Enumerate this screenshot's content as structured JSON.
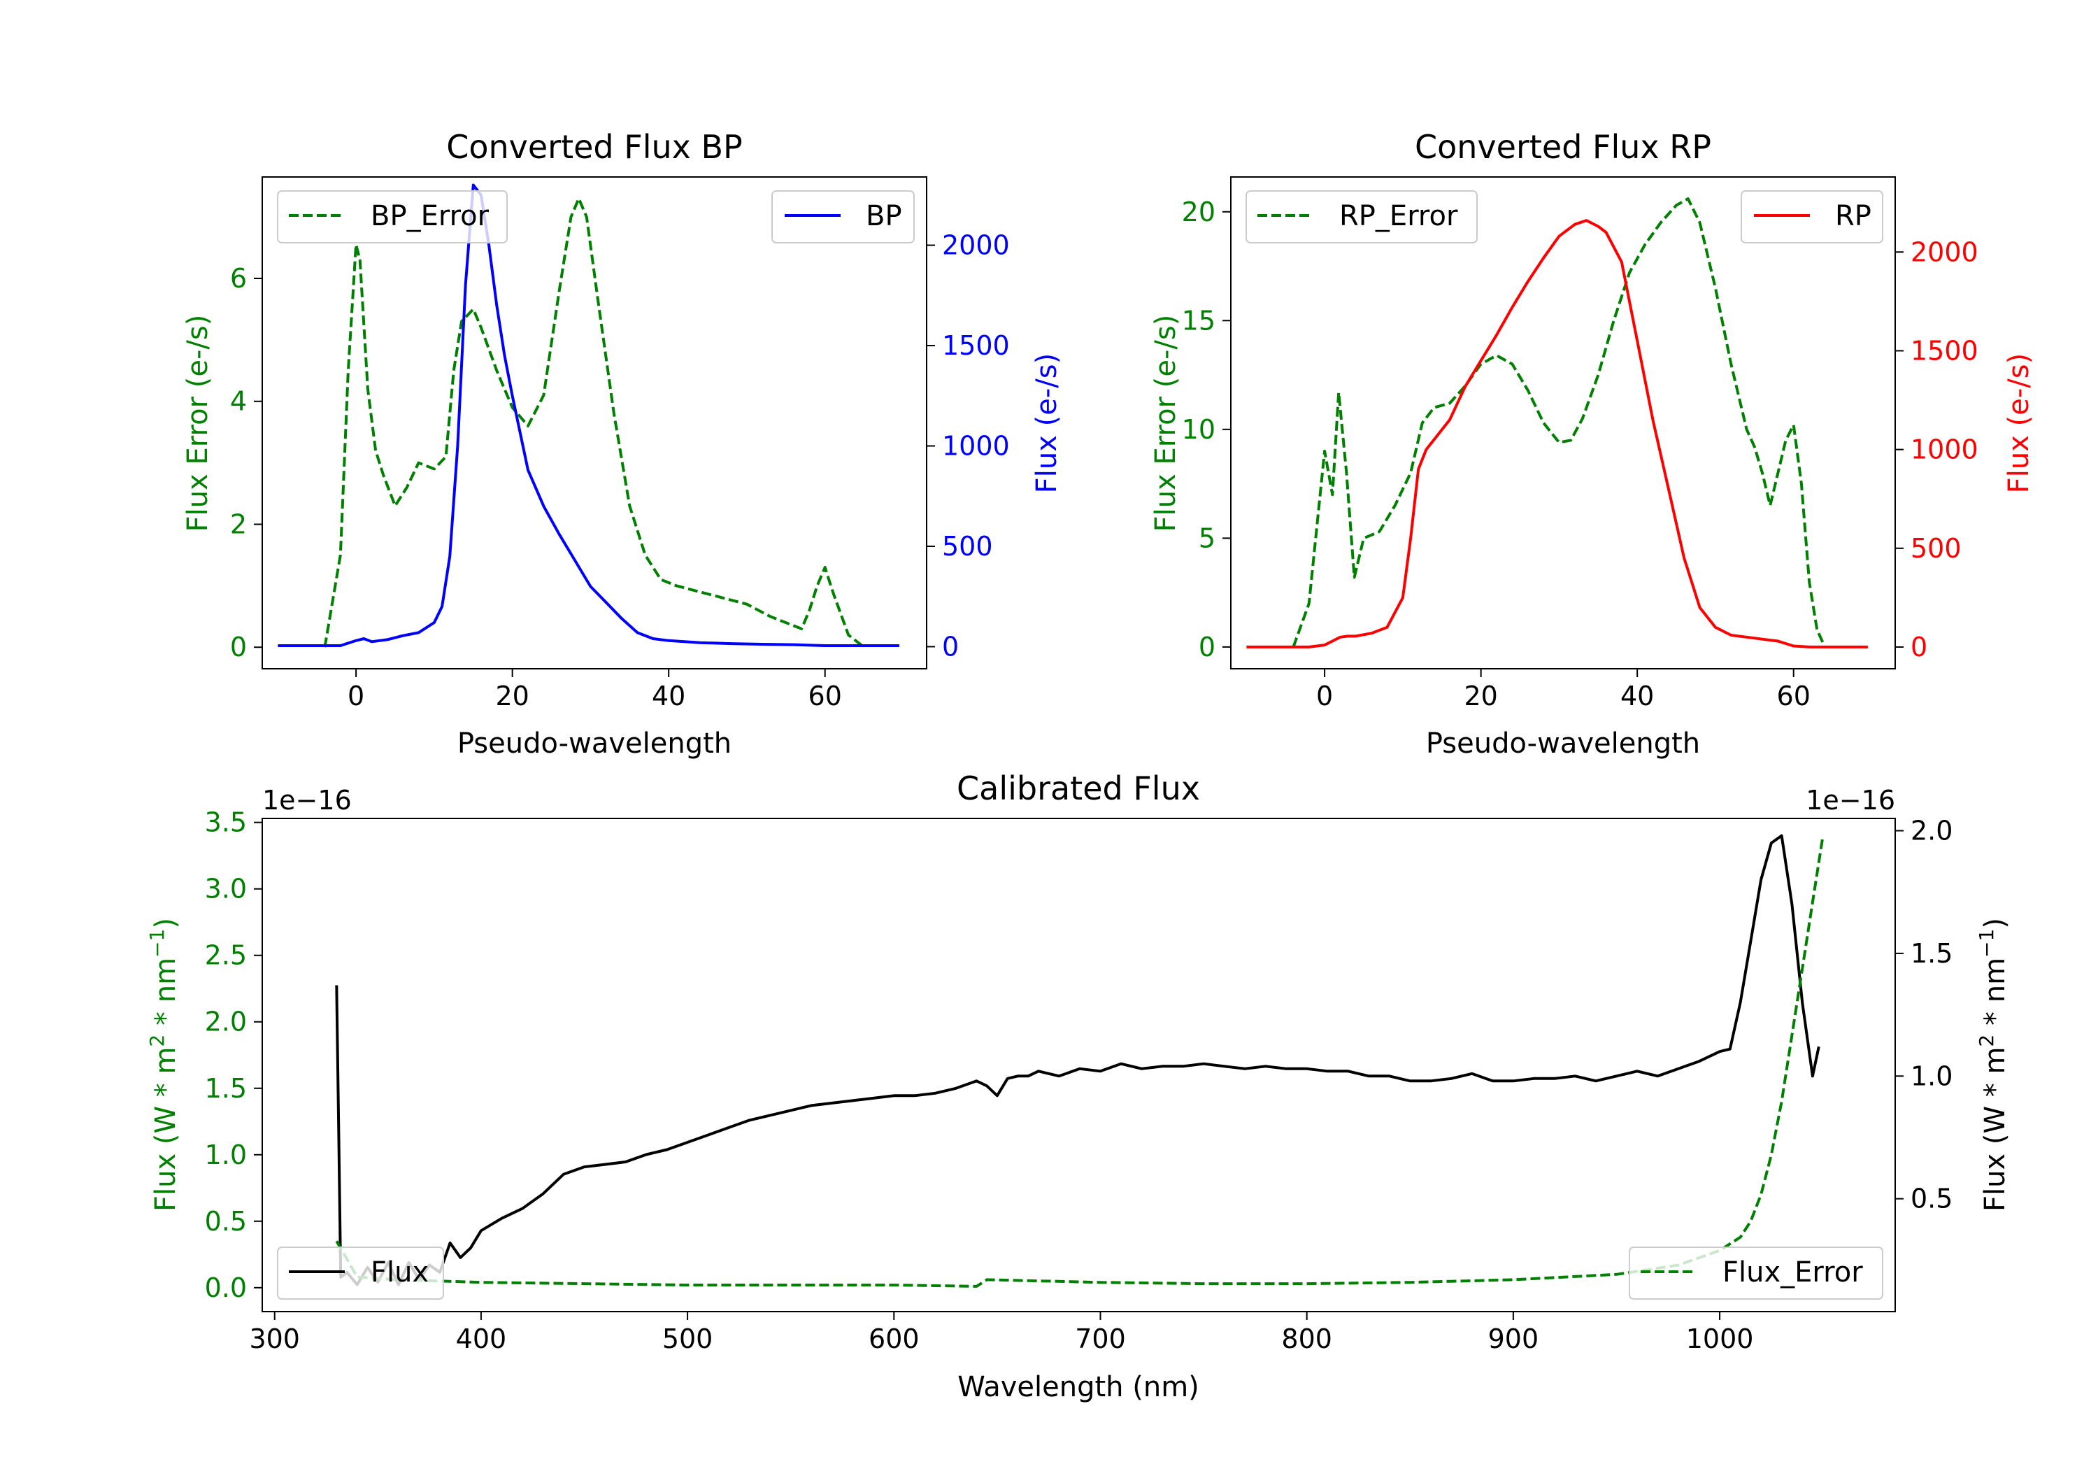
{
  "chart_data": [
    {
      "type": "line",
      "title": "Converted Flux BP",
      "xlabel": "Pseudo-wavelength",
      "ylabel": "Flux Error (e-/s)",
      "ylabel_right": "Flux (e-/s)",
      "xlim": [
        -12,
        73
      ],
      "ylim": [
        -0.35,
        7.65
      ],
      "ylim_right": [
        -110,
        2340
      ],
      "xticks": [
        0,
        20,
        40,
        60
      ],
      "yticks": [
        0,
        2,
        4,
        6
      ],
      "yticks_right": [
        0,
        500,
        1000,
        1500,
        2000
      ],
      "colors": {
        "left": "#008000",
        "right": "#0000ff"
      },
      "legend_left": "top-left",
      "legend_right": "top-right",
      "series": [
        {
          "name": "BP_Error",
          "axis": "left",
          "color": "#008000",
          "style": "dashed",
          "x": [
            -4,
            -2,
            -1,
            0,
            0.5,
            1.5,
            2.5,
            3.5,
            5,
            6.5,
            8,
            10,
            11.5,
            12.5,
            13.5,
            15,
            16,
            18,
            20,
            22,
            24,
            26,
            27.5,
            28.5,
            29.5,
            31,
            33,
            35,
            37,
            39,
            41,
            44,
            47,
            50,
            53,
            55,
            57,
            58,
            59,
            60,
            61,
            63,
            65
          ],
          "values": [
            0,
            1.5,
            4.5,
            6.55,
            6.3,
            4.2,
            3.2,
            2.8,
            2.3,
            2.6,
            3.0,
            2.9,
            3.1,
            4.5,
            5.3,
            5.5,
            5.2,
            4.5,
            3.9,
            3.6,
            4.1,
            5.8,
            7.0,
            7.3,
            7.0,
            5.6,
            3.8,
            2.3,
            1.5,
            1.1,
            1.0,
            0.9,
            0.8,
            0.7,
            0.5,
            0.4,
            0.3,
            0.6,
            1.0,
            1.3,
            0.9,
            0.2,
            0
          ]
        },
        {
          "name": "BP",
          "axis": "right",
          "color": "#0000ff",
          "style": "solid",
          "x": [
            -10,
            -6,
            -2,
            0,
            1,
            2,
            4,
            6,
            8,
            10,
            11,
            12,
            13,
            14,
            15,
            16,
            17,
            18,
            19,
            20,
            22,
            24,
            26,
            28,
            30,
            32,
            34,
            36,
            38,
            40,
            44,
            48,
            52,
            56,
            60,
            64,
            69.5
          ],
          "values": [
            5,
            5,
            5,
            30,
            40,
            25,
            35,
            55,
            70,
            120,
            200,
            450,
            1000,
            1800,
            2300,
            2250,
            2000,
            1700,
            1450,
            1250,
            880,
            700,
            560,
            430,
            300,
            220,
            140,
            70,
            40,
            30,
            20,
            15,
            12,
            10,
            5,
            5,
            5
          ]
        }
      ]
    },
    {
      "type": "line",
      "title": "Converted Flux RP",
      "xlabel": "Pseudo-wavelength",
      "ylabel": "Flux Error (e-/s)",
      "ylabel_right": "Flux (e-/s)",
      "xlim": [
        -12,
        73
      ],
      "ylim": [
        -1.0,
        21.6
      ],
      "ylim_right": [
        -110,
        2380
      ],
      "xticks": [
        0,
        20,
        40,
        60
      ],
      "yticks": [
        0,
        5,
        10,
        15,
        20
      ],
      "yticks_right": [
        0,
        500,
        1000,
        1500,
        2000
      ],
      "colors": {
        "left": "#008000",
        "right": "#ff0000"
      },
      "legend_left": "top-left",
      "legend_right": "top-right",
      "series": [
        {
          "name": "RP_Error",
          "axis": "left",
          "color": "#008000",
          "style": "dashed",
          "x": [
            -4,
            -2,
            0,
            1,
            1.8,
            2.8,
            3.8,
            5,
            7,
            9,
            11,
            12.5,
            14,
            16,
            18,
            20,
            22,
            24,
            26,
            28,
            30,
            31.5,
            33,
            35,
            37,
            39,
            41,
            43,
            45,
            46.5,
            48,
            50,
            52,
            54,
            55,
            56,
            57,
            58,
            59,
            60,
            61,
            62,
            63,
            64
          ],
          "values": [
            0,
            2,
            9.0,
            7.0,
            11.7,
            8.0,
            3.2,
            5.0,
            5.3,
            6.5,
            8.0,
            10.3,
            11.0,
            11.2,
            12.0,
            13.0,
            13.4,
            13.0,
            11.8,
            10.3,
            9.4,
            9.5,
            10.5,
            12.5,
            15.0,
            17.2,
            18.5,
            19.5,
            20.3,
            20.6,
            19.5,
            16.5,
            13.0,
            10.0,
            9.2,
            8.0,
            6.5,
            8.0,
            9.5,
            10.2,
            7.5,
            3.0,
            0.8,
            0
          ]
        },
        {
          "name": "RP",
          "axis": "right",
          "color": "#ff0000",
          "style": "solid",
          "x": [
            -10,
            -6,
            -2,
            0,
            1,
            2,
            3,
            4,
            6,
            8,
            10,
            11,
            12,
            13,
            14,
            16,
            18,
            20,
            22,
            24,
            26,
            28,
            30,
            32,
            33.5,
            35,
            36,
            38,
            40,
            42,
            44,
            46,
            48,
            50,
            52,
            54,
            56,
            58,
            60,
            62,
            65,
            69.5
          ],
          "values": [
            0,
            0,
            0,
            10,
            30,
            50,
            55,
            55,
            70,
            100,
            250,
            550,
            900,
            1000,
            1050,
            1150,
            1320,
            1450,
            1580,
            1720,
            1850,
            1970,
            2080,
            2140,
            2160,
            2130,
            2100,
            1950,
            1550,
            1150,
            800,
            450,
            200,
            100,
            60,
            50,
            40,
            30,
            5,
            0,
            0,
            0
          ]
        }
      ]
    },
    {
      "type": "line",
      "title": "Calibrated Flux",
      "xlabel": "Wavelength (nm)",
      "ylabel": "Flux (W * m",
      "ylabel_sup": "2",
      "ylabel_mid": " * nm",
      "ylabel_sup2": "−1",
      "ylabel_end": ")",
      "ylabel_right": "Flux (W * m",
      "offset_left": "1e−16",
      "offset_right": "1e−16",
      "xlim": [
        294,
        1085
      ],
      "ylim": [
        -0.18,
        3.53
      ],
      "ylim_right": [
        0.04,
        2.05
      ],
      "xticks": [
        300,
        400,
        500,
        600,
        700,
        800,
        900,
        1000
      ],
      "yticks": [
        "0.0",
        "0.5",
        "1.0",
        "1.5",
        "2.0",
        "2.5",
        "3.0",
        "3.5"
      ],
      "yticks_right": [
        "0.5",
        "1.0",
        "1.5",
        "2.0"
      ],
      "unit_scale": "1e-16",
      "colors": {
        "left": "#008000",
        "right": "#000000"
      },
      "legend_left": "bottom-left",
      "legend_right": "bottom-right",
      "series": [
        {
          "name": "Flux",
          "axis": "right",
          "color": "#000000",
          "style": "solid",
          "x": [
            330,
            331,
            332,
            335,
            340,
            345,
            350,
            355,
            360,
            365,
            370,
            375,
            380,
            385,
            390,
            395,
            400,
            410,
            420,
            430,
            440,
            450,
            460,
            470,
            480,
            490,
            500,
            510,
            520,
            530,
            540,
            550,
            560,
            570,
            580,
            590,
            600,
            610,
            620,
            630,
            640,
            645,
            650,
            655,
            660,
            665,
            670,
            680,
            690,
            700,
            710,
            720,
            730,
            740,
            750,
            760,
            770,
            780,
            790,
            800,
            810,
            820,
            830,
            840,
            850,
            860,
            870,
            880,
            890,
            900,
            910,
            920,
            930,
            940,
            950,
            960,
            970,
            980,
            990,
            1000,
            1005,
            1010,
            1015,
            1020,
            1025,
            1030,
            1035,
            1040,
            1045,
            1048
          ],
          "values": [
            1.37,
            0.8,
            0.18,
            0.2,
            0.15,
            0.22,
            0.16,
            0.24,
            0.15,
            0.24,
            0.17,
            0.23,
            0.2,
            0.32,
            0.26,
            0.3,
            0.37,
            0.42,
            0.46,
            0.52,
            0.6,
            0.63,
            0.64,
            0.65,
            0.68,
            0.7,
            0.73,
            0.76,
            0.79,
            0.82,
            0.84,
            0.86,
            0.88,
            0.89,
            0.9,
            0.91,
            0.92,
            0.92,
            0.93,
            0.95,
            0.98,
            0.96,
            0.92,
            0.99,
            1.0,
            1.0,
            1.02,
            1.0,
            1.03,
            1.02,
            1.05,
            1.03,
            1.04,
            1.04,
            1.05,
            1.04,
            1.03,
            1.04,
            1.03,
            1.03,
            1.02,
            1.02,
            1.0,
            1.0,
            0.98,
            0.98,
            0.99,
            1.01,
            0.98,
            0.98,
            0.99,
            0.99,
            1.0,
            0.98,
            1.0,
            1.02,
            1.0,
            1.03,
            1.06,
            1.1,
            1.11,
            1.3,
            1.55,
            1.8,
            1.95,
            1.98,
            1.7,
            1.3,
            1.0,
            1.12
          ]
        },
        {
          "name": "Flux_Error",
          "axis": "left",
          "color": "#008000",
          "style": "dashed",
          "x": [
            330,
            340,
            360,
            380,
            400,
            450,
            500,
            550,
            600,
            640,
            645,
            700,
            750,
            800,
            850,
            900,
            950,
            980,
            1000,
            1010,
            1015,
            1020,
            1025,
            1030,
            1035,
            1040,
            1045,
            1050
          ],
          "values": [
            0.35,
            0.08,
            0.06,
            0.05,
            0.04,
            0.03,
            0.02,
            0.02,
            0.02,
            0.01,
            0.06,
            0.04,
            0.03,
            0.03,
            0.04,
            0.06,
            0.1,
            0.17,
            0.28,
            0.38,
            0.5,
            0.7,
            1.0,
            1.4,
            1.9,
            2.4,
            2.9,
            3.4
          ]
        }
      ]
    }
  ]
}
